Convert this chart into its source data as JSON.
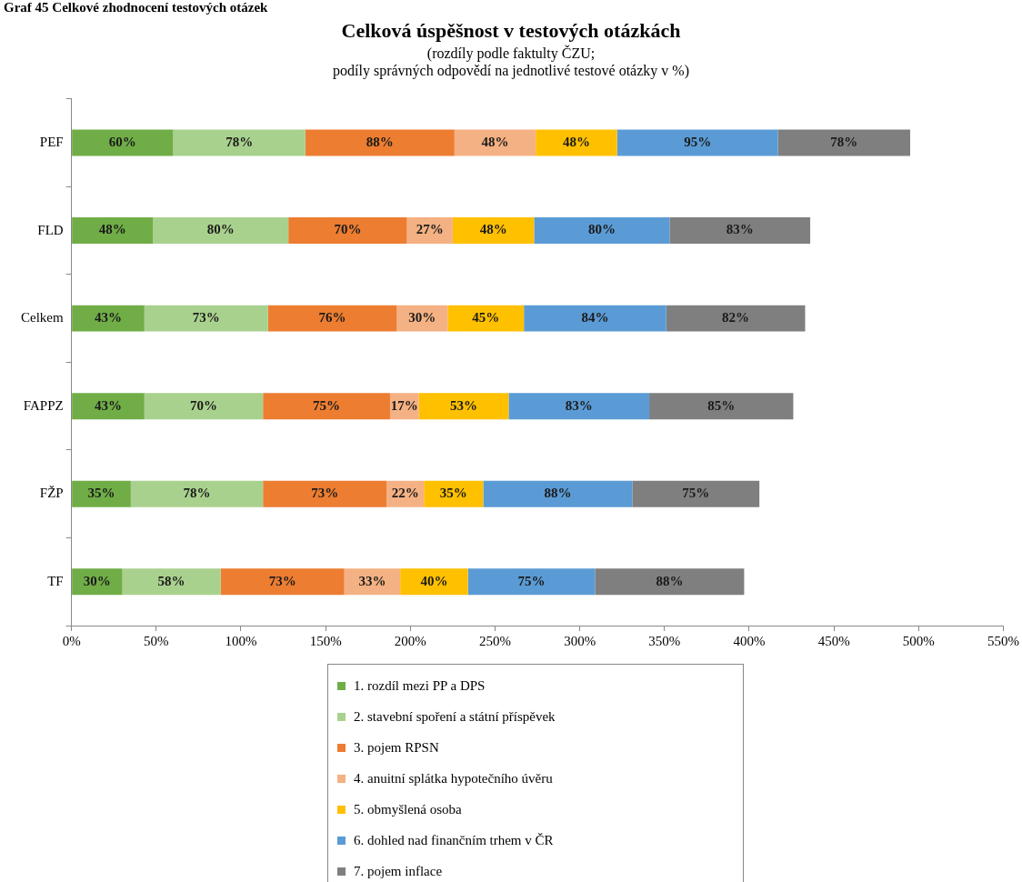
{
  "chart_data": {
    "type": "bar",
    "orientation": "horizontal",
    "stacked": true,
    "title": "Celková úspěšnost v testových otázkách",
    "subtitle": "(rozdíly podle faktulty ČZU;\npodíly správných odpovědí na jednotlivé testové otázky v %)",
    "annotations": [
      "Graf 45 Celkové zhodnocení testových otázek"
    ],
    "categories": [
      "PEF",
      "FLD",
      "Celkem",
      "FAPPZ",
      "FŽP",
      "TF"
    ],
    "xlim": [
      0,
      550
    ],
    "xticks": [
      {
        "value": 0,
        "label": "0%"
      },
      {
        "value": 50,
        "label": "50%"
      },
      {
        "value": 100,
        "label": "100%"
      },
      {
        "value": 150,
        "label": "150%"
      },
      {
        "value": 200,
        "label": "200%"
      },
      {
        "value": 250,
        "label": "250%"
      },
      {
        "value": 300,
        "label": "300%"
      },
      {
        "value": 350,
        "label": "350%"
      },
      {
        "value": 400,
        "label": "400%"
      },
      {
        "value": 450,
        "label": "450%"
      },
      {
        "value": 500,
        "label": "500%"
      },
      {
        "value": 550,
        "label": "550%"
      }
    ],
    "legend": "bottom",
    "series": [
      {
        "name": "1. rozdíl mezi PP a DPS",
        "color": "#70ad47",
        "values": [
          60,
          48,
          43,
          43,
          35,
          30
        ],
        "value_labels": [
          "60%",
          "48%",
          "43%",
          "43%",
          "35%",
          "30%"
        ]
      },
      {
        "name": "2. stavební spoření a státní příspěvek",
        "color": "#a9d18e",
        "values": [
          78,
          80,
          73,
          70,
          78,
          58
        ],
        "value_labels": [
          "78%",
          "80%",
          "73%",
          "70%",
          "78%",
          "58%"
        ]
      },
      {
        "name": "3. pojem RPSN",
        "color": "#ed7d31",
        "values": [
          88,
          70,
          76,
          75,
          73,
          73
        ],
        "value_labels": [
          "88%",
          "70%",
          "76%",
          "75%",
          "73%",
          "73%"
        ]
      },
      {
        "name": "4. anuitní splátka hypotečního úvěru",
        "color": "#f4b183",
        "values": [
          48,
          27,
          30,
          17,
          22,
          33
        ],
        "value_labels": [
          "48%",
          "27%",
          "30%",
          "17%",
          "22%",
          "33%"
        ]
      },
      {
        "name": "5. obmyšlená osoba",
        "color": "#ffc000",
        "values": [
          48,
          48,
          45,
          53,
          35,
          40
        ],
        "value_labels": [
          "48%",
          "48%",
          "45%",
          "53%",
          "35%",
          "40%"
        ]
      },
      {
        "name": "6. dohled nad finančním trhem v ČR",
        "color": "#5b9bd5",
        "values": [
          95,
          80,
          84,
          83,
          88,
          75
        ],
        "value_labels": [
          "95%",
          "80%",
          "84%",
          "83%",
          "88%",
          "75%"
        ]
      },
      {
        "name": "7. pojem inflace",
        "color": "#7f7f7f",
        "values": [
          78,
          83,
          82,
          85,
          75,
          88
        ],
        "value_labels": [
          "78%",
          "83%",
          "82%",
          "85%",
          "75%",
          "88%"
        ]
      }
    ]
  }
}
